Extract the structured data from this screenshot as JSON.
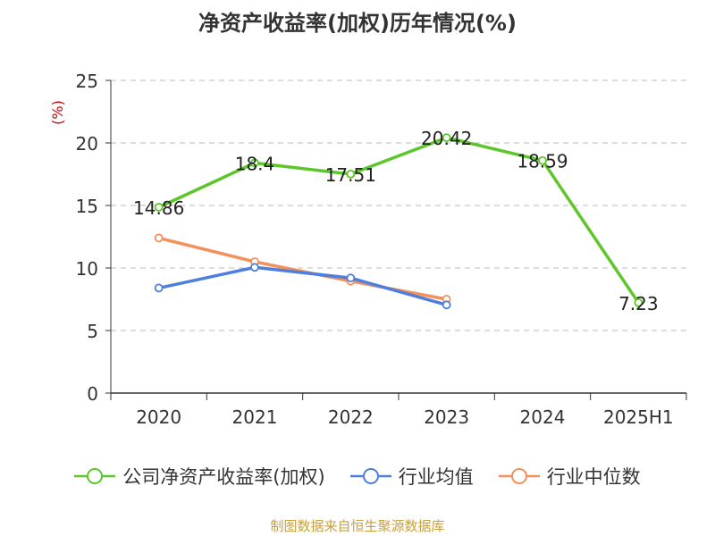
{
  "chart_data": {
    "type": "line",
    "title": "净资产收益率(加权)历年情况(%)",
    "ylabel": "(%)",
    "xlabel": "",
    "categories": [
      "2020",
      "2021",
      "2022",
      "2023",
      "2024",
      "2025H1"
    ],
    "ylim": [
      0,
      25
    ],
    "yticks": [
      0,
      5,
      10,
      15,
      20,
      25
    ],
    "grid": true,
    "legend_position": "bottom",
    "series": [
      {
        "name": "公司净资产收益率(加权)",
        "color": "#5dc62a",
        "values": [
          14.86,
          18.4,
          17.51,
          20.42,
          18.59,
          7.23
        ],
        "labels": [
          "14.86",
          "18.4",
          "17.51",
          "20.42",
          "18.59",
          "7.23"
        ]
      },
      {
        "name": "行业均值",
        "color": "#4f7fdc",
        "values": [
          8.4,
          10.05,
          9.2,
          7.05,
          null,
          null
        ]
      },
      {
        "name": "行业中位数",
        "color": "#f4905a",
        "values": [
          12.4,
          10.5,
          8.95,
          7.5,
          null,
          null
        ]
      }
    ]
  },
  "source": "制图数据来自恒生聚源数据库"
}
